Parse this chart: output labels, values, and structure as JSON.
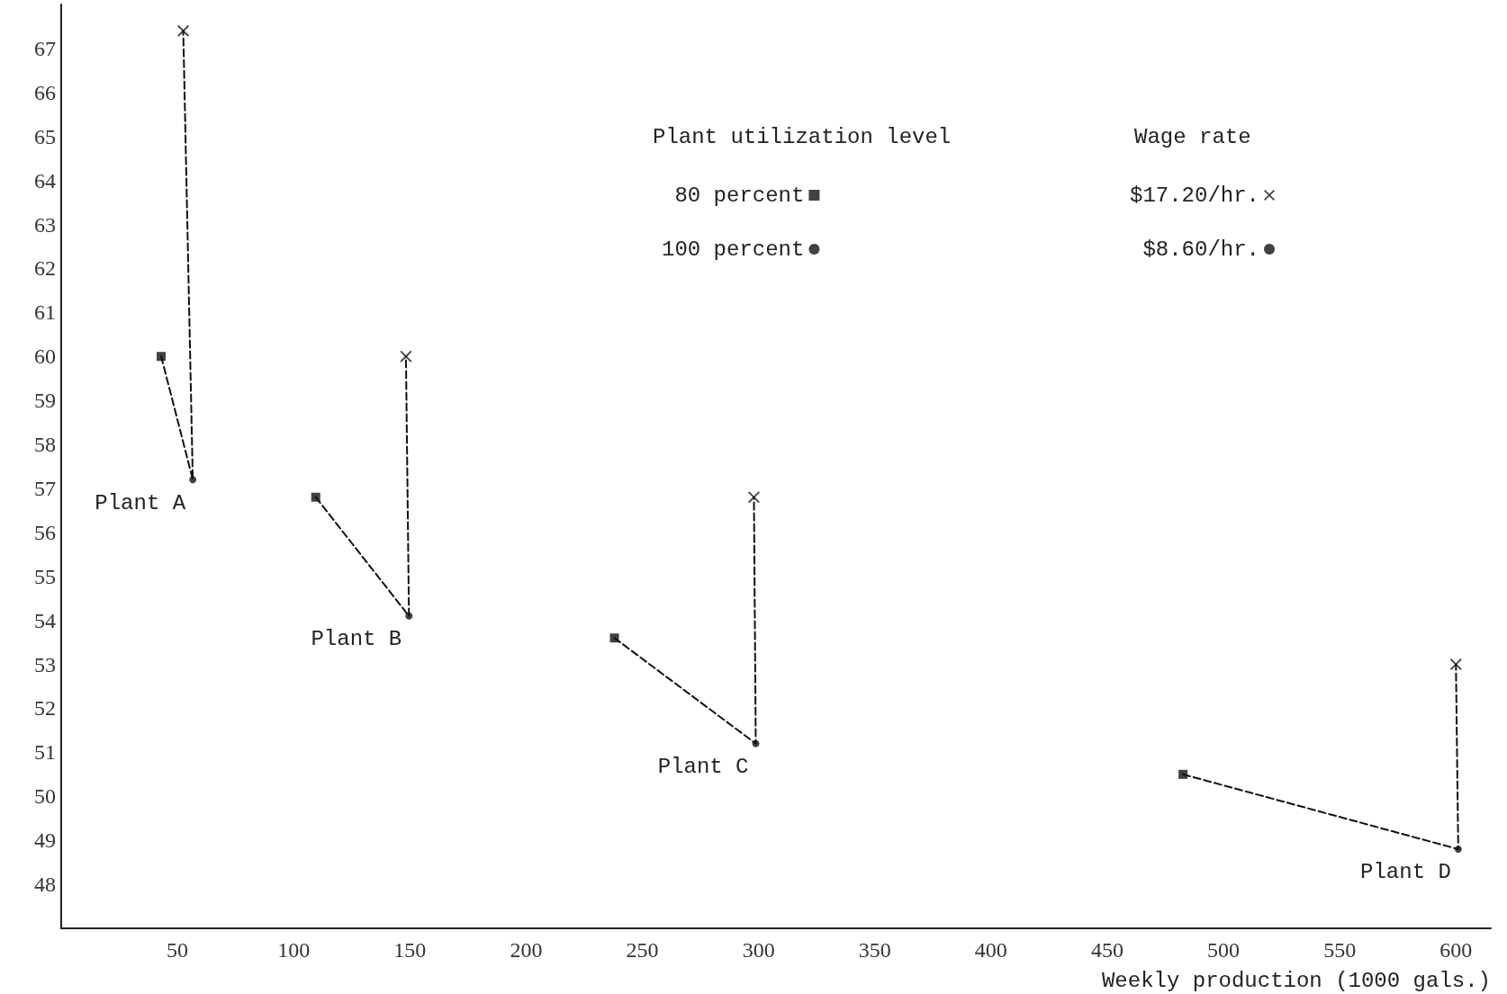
{
  "chart_data": {
    "type": "scatter",
    "xlabel": "Weekly production (1000 gals.)",
    "xlim": [
      0,
      615
    ],
    "xticks": [
      50,
      100,
      150,
      200,
      250,
      300,
      350,
      400,
      450,
      500,
      550,
      600
    ],
    "ylim": [
      47,
      68
    ],
    "yticks": [
      48,
      49,
      50,
      51,
      52,
      53,
      54,
      55,
      56,
      57,
      58,
      59,
      60,
      61,
      62,
      63,
      64,
      65,
      66,
      67
    ],
    "grid": false,
    "legend": "top right",
    "series": [
      {
        "type": "line",
        "color": "#111111",
        "marker": "none",
        "line_style": "dashed",
        "x": [
          43,
          56.6,
          52.5
        ],
        "values": [
          60,
          57.2,
          67.4
        ]
      },
      {
        "type": "line",
        "color": "#111111",
        "marker": "none",
        "line_style": "dashed",
        "x": [
          109.5,
          149.6,
          148.3
        ],
        "values": [
          56.8,
          54.1,
          60.0
        ]
      },
      {
        "type": "line",
        "color": "#111111",
        "marker": "none",
        "line_style": "dashed",
        "x": [
          238,
          298.8,
          298
        ],
        "values": [
          53.6,
          51.2,
          56.8
        ]
      },
      {
        "type": "line",
        "color": "#111111",
        "marker": "none",
        "line_style": "dashed",
        "x": [
          482.6,
          601,
          600
        ],
        "values": [
          50.5,
          48.8,
          53.0
        ]
      },
      {
        "name": "80 percent",
        "color": "#111111",
        "marker": "square",
        "x": [
          43,
          109.5,
          238,
          482.6
        ],
        "values": [
          60,
          56.8,
          53.6,
          50.5
        ]
      },
      {
        "name": "100 percent",
        "color": "#111111",
        "marker": "circle",
        "x": [
          56.6,
          149.6,
          298.8,
          601
        ],
        "values": [
          57.2,
          54.1,
          51.2,
          48.8
        ]
      },
      {
        "name": "$17.20/hr.",
        "color": "#111111",
        "marker": "cross",
        "x": [
          52.5,
          148.3,
          298,
          600
        ],
        "values": [
          67.4,
          60.0,
          56.8,
          53.0
        ]
      },
      {
        "name": "$8.60/hr.",
        "color": "#111111",
        "marker": "circle",
        "values": [
          null,
          null,
          null,
          null
        ]
      }
    ],
    "annotations": [
      "Plant utilization level",
      "Wage rate",
      {
        "text": "Plant A",
        "x": 56.6,
        "y": 57.2
      },
      {
        "text": "Plant B",
        "x": 149.6,
        "y": 54.1
      },
      {
        "text": "Plant C",
        "x": 298.8,
        "y": 51.2
      },
      {
        "text": "Plant D",
        "x": 601,
        "y": 48.8
      }
    ]
  }
}
